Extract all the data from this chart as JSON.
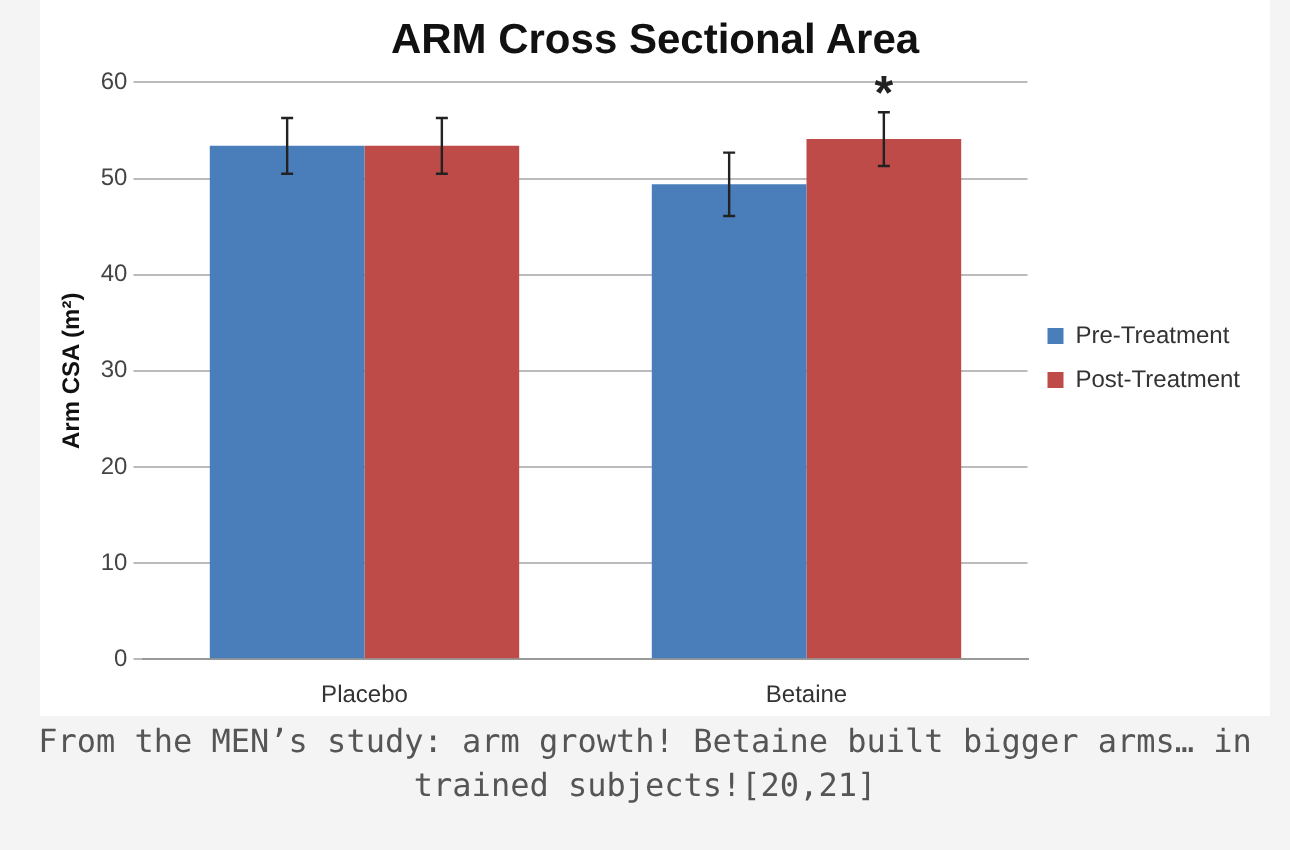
{
  "chart_data": {
    "type": "bar",
    "title": "ARM Cross Sectional Area",
    "ylabel": "Arm CSA (m²)",
    "categories": [
      "Placebo",
      "Betaine"
    ],
    "series": [
      {
        "name": "Pre-Treatment",
        "color": "#4a7ebb",
        "values": [
          53.4,
          49.4
        ],
        "errors": [
          2.9,
          3.3
        ]
      },
      {
        "name": "Post-Treatment",
        "color": "#be4b48",
        "values": [
          53.4,
          54.1
        ],
        "errors": [
          2.9,
          2.8
        ]
      }
    ],
    "ylim": [
      0,
      60
    ],
    "yticks": [
      0,
      10,
      20,
      30,
      40,
      50,
      60
    ],
    "grid": "y",
    "legend": "right",
    "annotations": [
      "*",
      "From the MEN’s study: arm growth! Betaine built bigger arms… in trained subjects![20,21]"
    ]
  }
}
